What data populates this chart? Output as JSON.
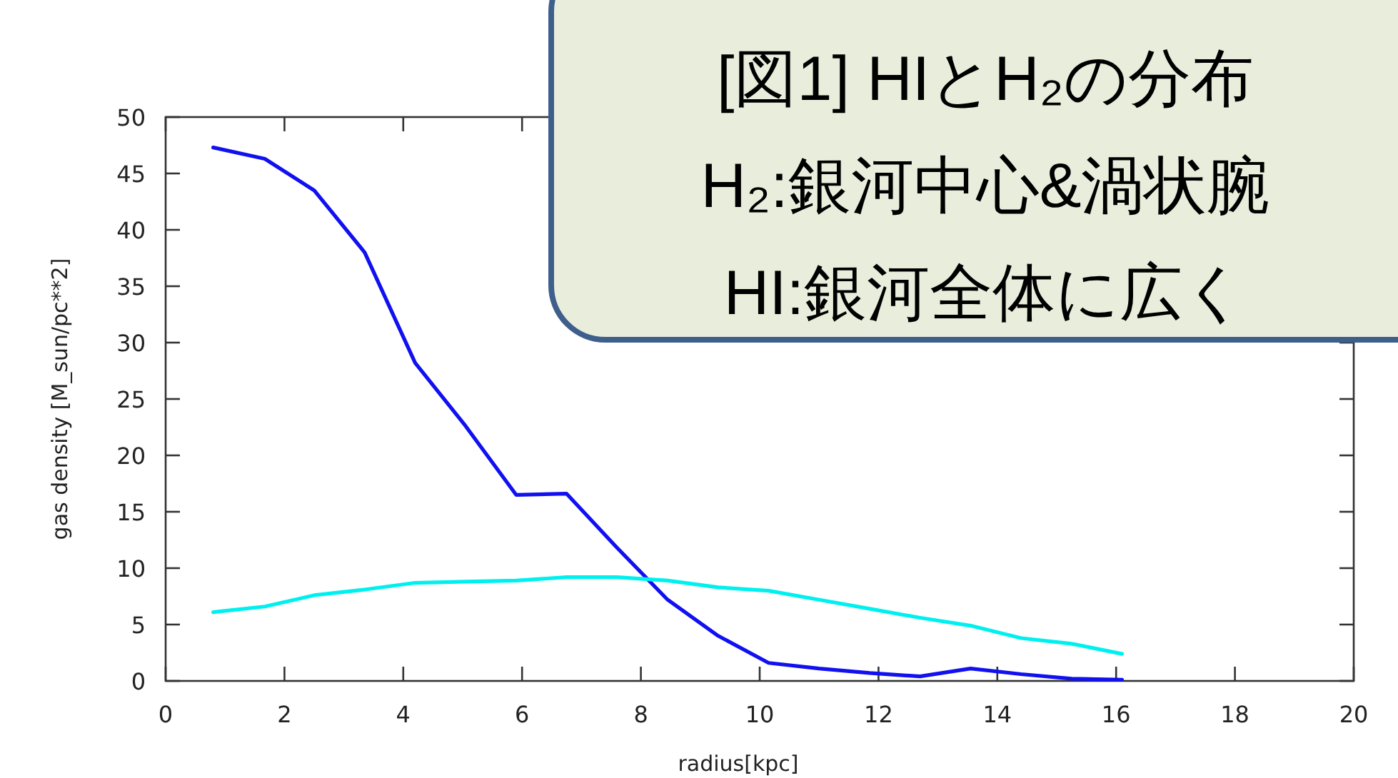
{
  "chart_data": {
    "type": "line",
    "xlabel": "radius[kpc]",
    "ylabel": "gas density [M_sun/pc**2]",
    "x": [
      0.8,
      1.67,
      2.5,
      3.35,
      4.2,
      5.05,
      5.9,
      6.75,
      7.6,
      8.45,
      9.3,
      10.15,
      11,
      11.85,
      12.7,
      13.55,
      14.4,
      15.25,
      16.1
    ],
    "series": [
      {
        "color": "#1010f0",
        "values": [
          47.3,
          46.3,
          43.5,
          38,
          28.2,
          22.6,
          16.5,
          16.6,
          11.8,
          7.2,
          4,
          1.6,
          1.1,
          0.7,
          0.4,
          1.1,
          0.6,
          0.2,
          0.1
        ]
      },
      {
        "color": "#00f0f0",
        "values": [
          6.1,
          6.6,
          7.6,
          8.1,
          8.7,
          8.8,
          8.9,
          9.2,
          9.2,
          8.9,
          8.3,
          8,
          7.2,
          6.4,
          5.6,
          4.9,
          3.8,
          3.3,
          2.4
        ]
      }
    ],
    "xlim": [
      0,
      20
    ],
    "xticks": [
      0,
      2,
      4,
      6,
      8,
      10,
      12,
      14,
      16,
      18,
      20
    ],
    "ylim": [
      0,
      50
    ],
    "yticks": [
      0,
      5,
      10,
      15,
      20,
      25,
      30,
      35,
      40,
      45,
      50
    ],
    "grid": false,
    "marker": "none",
    "line_style": "solid",
    "annotations": [
      "[図1]  HIとH₂の分布",
      "H₂:銀河中心&渦状腕",
      "HI:銀河全体に広く"
    ]
  }
}
